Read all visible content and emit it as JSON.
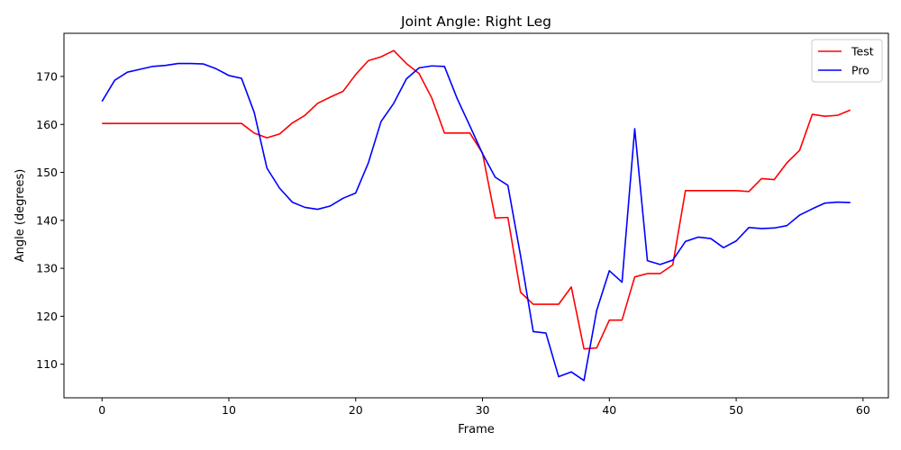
{
  "chart_data": {
    "type": "line",
    "title": "Joint Angle: Right Leg",
    "xlabel": "Frame",
    "ylabel": "Angle (degrees)",
    "xlim": [
      -3,
      62
    ],
    "ylim": [
      103,
      179
    ],
    "xticks": [
      0,
      10,
      20,
      30,
      40,
      50,
      60
    ],
    "yticks": [
      110,
      120,
      130,
      140,
      150,
      160,
      170
    ],
    "grid": false,
    "legend_position": "top-right",
    "series": [
      {
        "name": "Test",
        "color": "#ff0000",
        "x": [
          0,
          1,
          2,
          3,
          4,
          5,
          6,
          7,
          8,
          9,
          10,
          11,
          12,
          13,
          14,
          15,
          16,
          17,
          18,
          19,
          20,
          21,
          22,
          23,
          24,
          25,
          26,
          27,
          28,
          29,
          30,
          31,
          32,
          33,
          34,
          35,
          36,
          37,
          38,
          39,
          40,
          41,
          42,
          43,
          44,
          45,
          46,
          47,
          48,
          49,
          50,
          51,
          52,
          53,
          54,
          55,
          56,
          57,
          58,
          59
        ],
        "values": [
          160.2,
          160.2,
          160.2,
          160.2,
          160.2,
          160.2,
          160.2,
          160.2,
          160.2,
          160.2,
          160.2,
          160.2,
          158.2,
          157.2,
          158.0,
          160.3,
          161.9,
          164.4,
          165.7,
          166.9,
          170.4,
          173.3,
          174.1,
          175.4,
          172.7,
          170.6,
          165.5,
          158.2,
          158.2,
          158.2,
          154.0,
          140.5,
          140.6,
          125.0,
          122.5,
          122.5,
          122.5,
          126.1,
          113.2,
          113.4,
          119.2,
          119.2,
          128.2,
          128.9,
          128.9,
          130.7,
          146.2,
          146.2,
          146.2,
          146.2,
          146.2,
          146.0,
          148.7,
          148.5,
          152.0,
          154.6,
          162.1,
          161.7,
          161.9,
          163.0
        ]
      },
      {
        "name": "Pro",
        "color": "#0000ff",
        "x": [
          0,
          1,
          2,
          3,
          4,
          5,
          6,
          7,
          8,
          9,
          10,
          11,
          12,
          13,
          14,
          15,
          16,
          17,
          18,
          19,
          20,
          21,
          22,
          23,
          24,
          25,
          26,
          27,
          28,
          29,
          30,
          31,
          32,
          33,
          34,
          35,
          36,
          37,
          38,
          39,
          40,
          41,
          42,
          43,
          44,
          45,
          46,
          47,
          48,
          49,
          50,
          51,
          52,
          53,
          54,
          55,
          56,
          57,
          58,
          59
        ],
        "values": [
          164.8,
          169.2,
          170.9,
          171.5,
          172.1,
          172.3,
          172.7,
          172.7,
          172.6,
          171.6,
          170.2,
          169.6,
          162.5,
          150.9,
          146.7,
          143.8,
          142.7,
          142.3,
          143.0,
          144.6,
          145.7,
          152.0,
          160.6,
          164.4,
          169.5,
          171.8,
          172.2,
          172.1,
          165.4,
          159.7,
          153.9,
          149.0,
          147.3,
          132.6,
          116.8,
          116.5,
          107.4,
          108.4,
          106.6,
          121.2,
          129.5,
          127.1,
          159.1,
          131.6,
          130.8,
          131.7,
          135.6,
          136.5,
          136.2,
          134.3,
          135.7,
          138.5,
          138.3,
          138.4,
          138.9,
          141.1,
          142.4,
          143.6,
          143.8,
          143.7
        ]
      }
    ]
  }
}
